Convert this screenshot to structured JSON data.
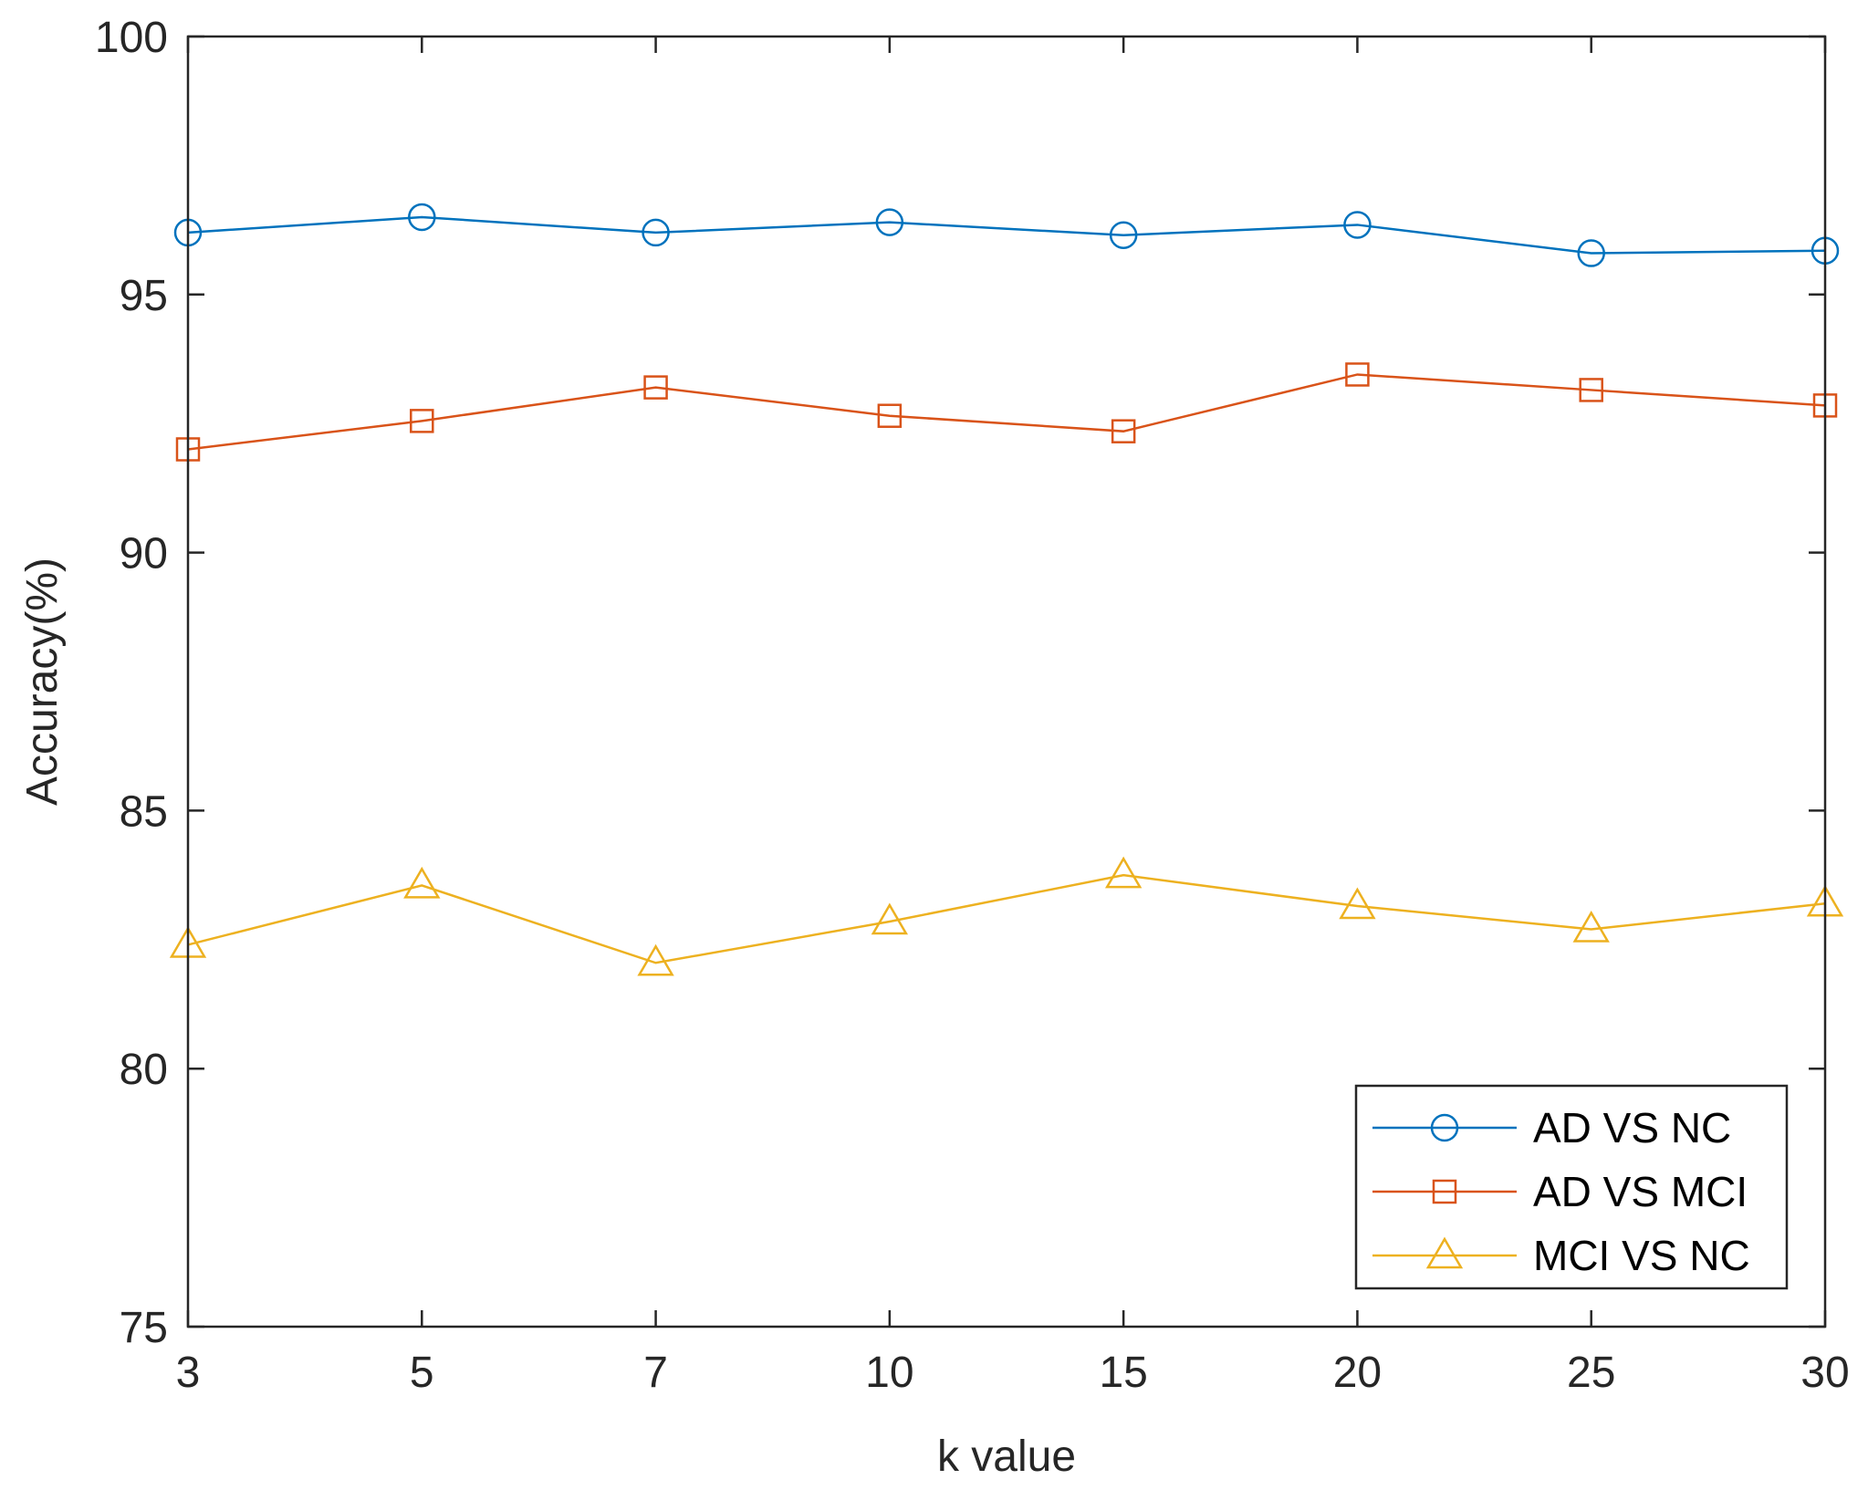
{
  "chart_data": {
    "type": "line",
    "title": "",
    "xlabel": "k value",
    "ylabel": "Accuracy(%)",
    "categories": [
      "3",
      "5",
      "7",
      "10",
      "15",
      "20",
      "25",
      "30"
    ],
    "ylim": [
      75,
      100
    ],
    "yticks": [
      75,
      80,
      85,
      90,
      95,
      100
    ],
    "grid": false,
    "legend_position": "bottom-right",
    "series": [
      {
        "name": "AD VS NC",
        "marker": "circle",
        "color": "#0072BD",
        "values": [
          96.2,
          96.5,
          96.2,
          96.4,
          96.15,
          96.35,
          95.8,
          95.85
        ]
      },
      {
        "name": "AD VS MCI",
        "marker": "square",
        "color": "#D95319",
        "values": [
          92.0,
          92.55,
          93.2,
          92.65,
          92.35,
          93.45,
          93.15,
          92.85
        ]
      },
      {
        "name": "MCI VS NC",
        "marker": "triangle",
        "color": "#EDB120",
        "values": [
          82.4,
          83.55,
          82.05,
          82.85,
          83.75,
          83.15,
          82.7,
          83.2
        ]
      }
    ]
  }
}
